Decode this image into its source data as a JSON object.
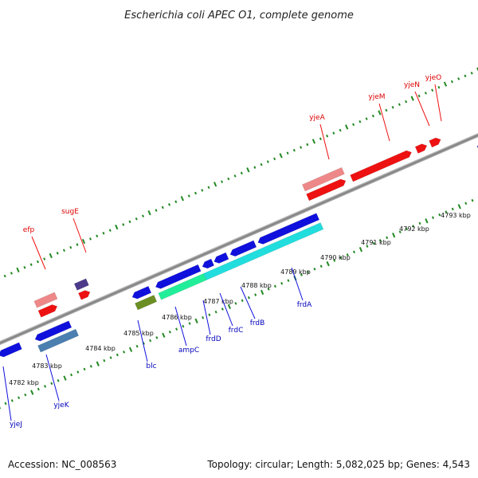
{
  "title": "Escherichia coli APEC O1, complete genome",
  "footer": {
    "accession": "Accession: NC_008563",
    "summary": "Topology: circular; Length: 5,082,025 bp; Genes: 4,543"
  },
  "scale_labels": [
    "4782 kbp",
    "4783 kbp",
    "4784 kbp",
    "4785 kbp",
    "4786 kbp",
    "4787 kbp",
    "4788 kbp",
    "4789 kbp",
    "4790 kbp",
    "4791 kbp",
    "4792 kbp",
    "4793 kbp"
  ],
  "genes_forward": [
    "efp",
    "sugE",
    "yjeA",
    "yjeM",
    "yjeN",
    "yjeO"
  ],
  "genes_reverse": [
    "yjeJ",
    "yjeK",
    "blc",
    "ampC",
    "frdD",
    "frdC",
    "frdB",
    "frdA"
  ],
  "colors": {
    "forward_cds": "#ee1111",
    "forward_rna": "#ee8888",
    "reverse_cds": "#1010dd",
    "reverse_cyan": "#22dddd",
    "reverse_green": "#22ee99",
    "steel": "#4a7fb0",
    "olive": "#6b8e23",
    "purple": "#4b3a8a",
    "backbone": "#888888",
    "tick": "#228822"
  }
}
